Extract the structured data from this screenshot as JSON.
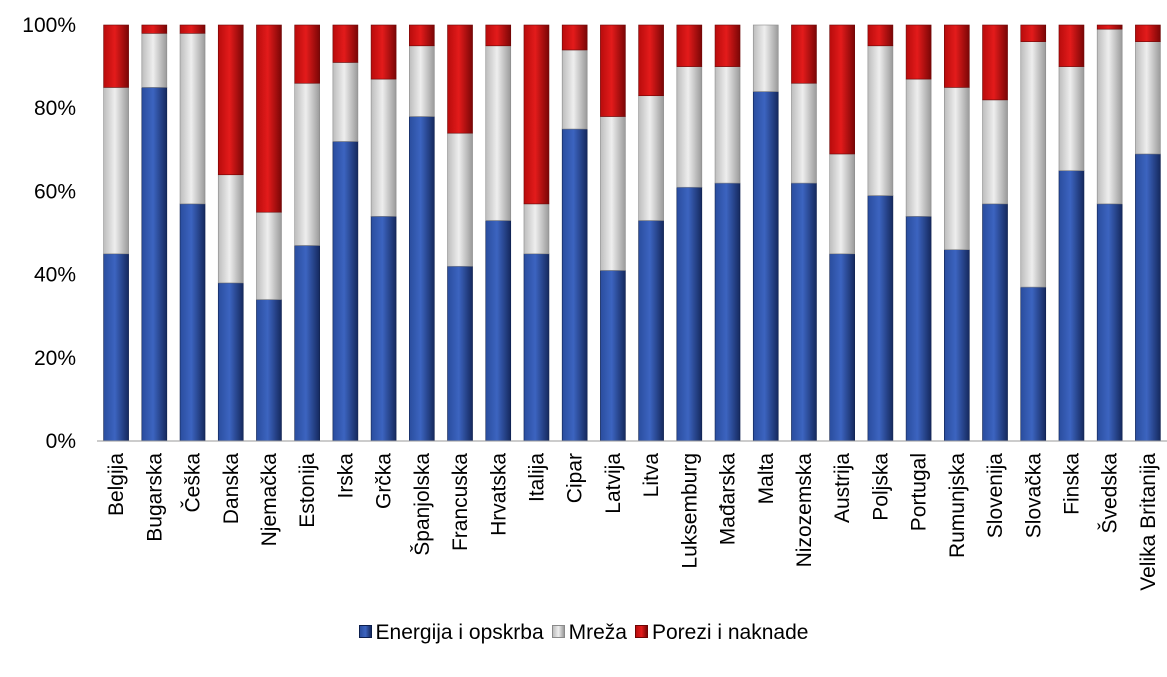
{
  "chart_data": {
    "type": "bar",
    "stacked": true,
    "title": "",
    "xlabel": "",
    "ylabel": "",
    "ylim": [
      0,
      100
    ],
    "y_ticks": [
      "0%",
      "20%",
      "40%",
      "60%",
      "80%",
      "100%"
    ],
    "grid": false,
    "legend_position": "bottom",
    "categories": [
      "Belgija",
      "Bugarska",
      "Češka",
      "Danska",
      "Njemačka",
      "Estonija",
      "Irska",
      "Grčka",
      "Španjolska",
      "Francuska",
      "Hrvatska",
      "Italija",
      "Cipar",
      "Latvija",
      "Litva",
      "Luksemburg",
      "Mađarska",
      "Malta",
      "Nizozemska",
      "Austrija",
      "Poljska",
      "Portugal",
      "Rumunjska",
      "Slovenija",
      "Slovačka",
      "Finska",
      "Švedska",
      "Velika Britanija"
    ],
    "series": [
      {
        "name": "Energija i opskrba",
        "color": "#1f3c88",
        "values": [
          45,
          85,
          57,
          38,
          34,
          47,
          72,
          54,
          78,
          42,
          53,
          45,
          75,
          41,
          53,
          61,
          62,
          84,
          62,
          45,
          59,
          54,
          46,
          57,
          37,
          65,
          57,
          69
        ]
      },
      {
        "name": "Mreža",
        "color": "#d4d4d4",
        "values": [
          40,
          13,
          41,
          26,
          21,
          39,
          19,
          33,
          17,
          32,
          42,
          12,
          19,
          37,
          30,
          29,
          28,
          16,
          24,
          24,
          36,
          33,
          39,
          25,
          59,
          25,
          42,
          27
        ]
      },
      {
        "name": "Porezi i naknade",
        "color": "#cc1111",
        "values": [
          15,
          2,
          2,
          36,
          45,
          14,
          9,
          13,
          5,
          26,
          5,
          43,
          6,
          22,
          17,
          10,
          10,
          0,
          14,
          31,
          5,
          13,
          15,
          18,
          4,
          10,
          1,
          4
        ]
      }
    ]
  }
}
